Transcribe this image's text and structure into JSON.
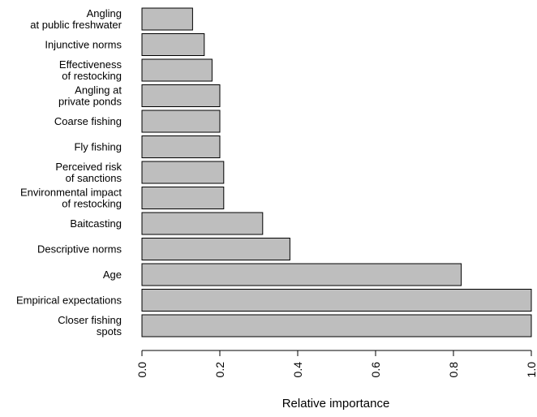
{
  "chart_data": {
    "type": "bar",
    "orientation": "horizontal",
    "title": "",
    "xlabel": "Relative importance",
    "ylabel": "",
    "xlim": [
      0,
      1
    ],
    "x_ticks": [
      "0.0",
      "0.2",
      "0.4",
      "0.6",
      "0.8",
      "1.0"
    ],
    "grid": false,
    "bar_color": "#bebebe",
    "bar_edge_color": "#000000",
    "categories": [
      [
        "Angling",
        "at public freshwater"
      ],
      [
        "Injunctive norms"
      ],
      [
        "Effectiveness",
        "of restocking"
      ],
      [
        "Angling at",
        "private ponds"
      ],
      [
        "Coarse fishing"
      ],
      [
        "Fly fishing"
      ],
      [
        "Perceived risk",
        "of sanctions"
      ],
      [
        "Environmental impact",
        "of restocking"
      ],
      [
        "Baitcasting"
      ],
      [
        "Descriptive norms"
      ],
      [
        "Age"
      ],
      [
        "Empirical expectations"
      ],
      [
        "Closer fishing",
        "spots"
      ]
    ],
    "values": [
      0.13,
      0.16,
      0.18,
      0.2,
      0.2,
      0.2,
      0.21,
      0.21,
      0.31,
      0.38,
      0.82,
      1.0,
      1.0
    ]
  }
}
